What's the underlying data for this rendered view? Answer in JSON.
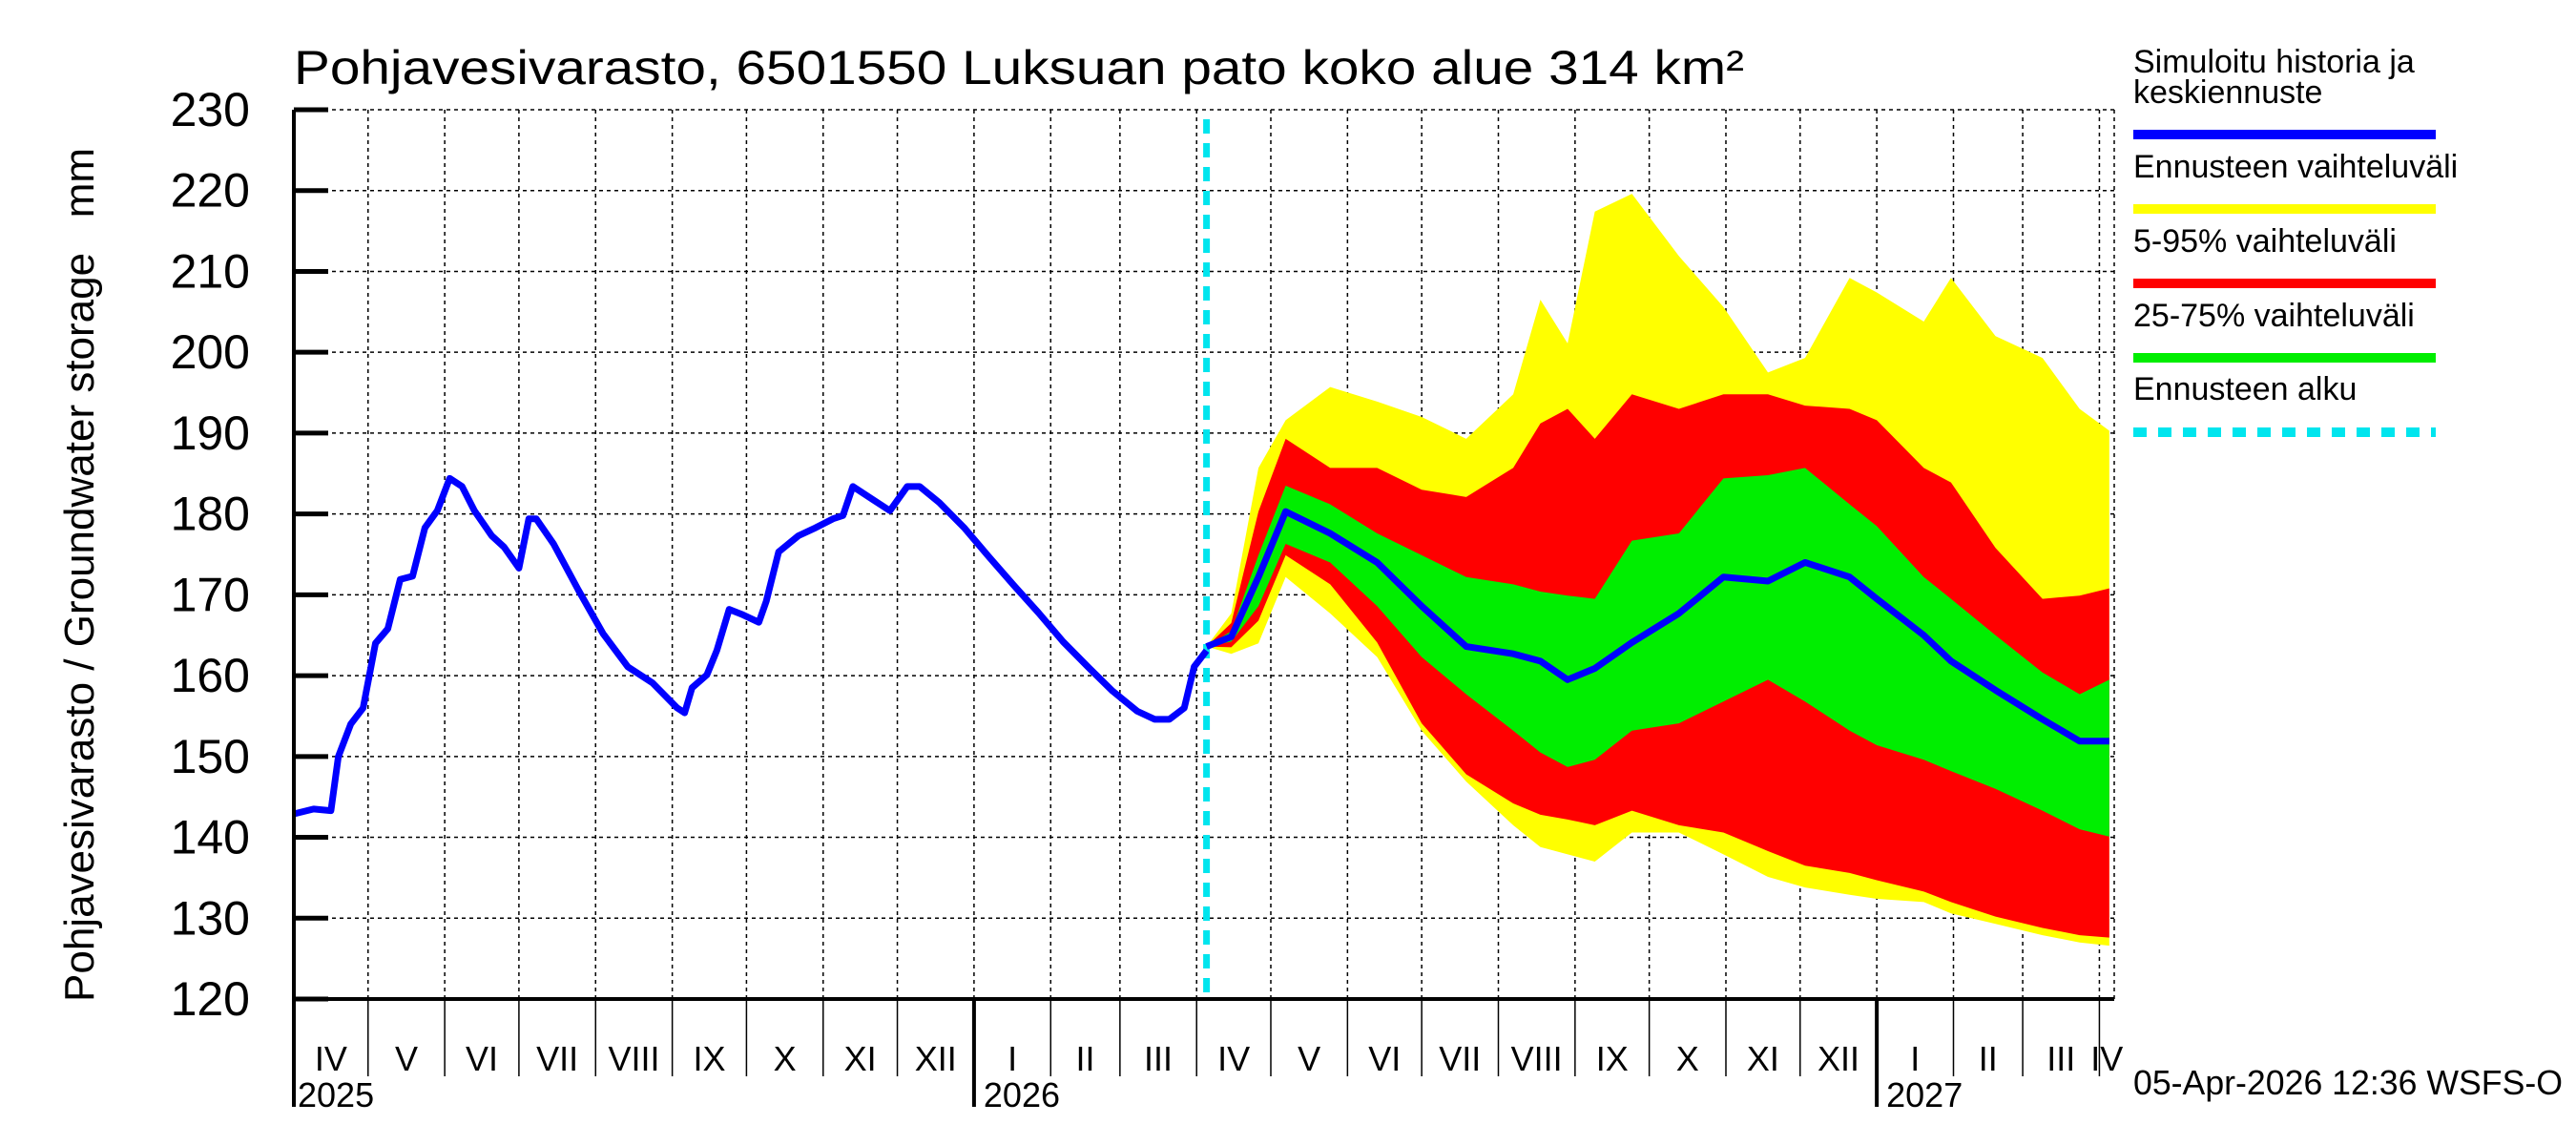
{
  "chart_data": {
    "type": "area",
    "title": "Pohjavesivarasto, 6501550 Luksuan pato koko alue 314 km²",
    "ylabel": "Pohjavesivarasto / Groundwater storage   mm",
    "xlabel": "",
    "ylim": [
      120,
      230
    ],
    "yticks": [
      120,
      130,
      140,
      150,
      160,
      170,
      180,
      190,
      200,
      210,
      220,
      230
    ],
    "x_unit": "days since 2025-04-01",
    "xlim": [
      0,
      736
    ],
    "grid": true,
    "legend_position": "right",
    "months": [
      {
        "label": "IV",
        "start": 0
      },
      {
        "label": "V",
        "start": 30
      },
      {
        "label": "VI",
        "start": 61
      },
      {
        "label": "VII",
        "start": 91
      },
      {
        "label": "VIII",
        "start": 122
      },
      {
        "label": "IX",
        "start": 153
      },
      {
        "label": "X",
        "start": 183
      },
      {
        "label": "XI",
        "start": 214
      },
      {
        "label": "XII",
        "start": 244
      },
      {
        "label": "I",
        "start": 275
      },
      {
        "label": "II",
        "start": 306
      },
      {
        "label": "III",
        "start": 334
      },
      {
        "label": "IV",
        "start": 365
      },
      {
        "label": "V",
        "start": 395
      },
      {
        "label": "VI",
        "start": 426
      },
      {
        "label": "VII",
        "start": 456
      },
      {
        "label": "VIII",
        "start": 487
      },
      {
        "label": "IX",
        "start": 518
      },
      {
        "label": "X",
        "start": 548
      },
      {
        "label": "XI",
        "start": 579
      },
      {
        "label": "XII",
        "start": 609
      },
      {
        "label": "I",
        "start": 640
      },
      {
        "label": "II",
        "start": 671
      },
      {
        "label": "III",
        "start": 699
      },
      {
        "label": "IV",
        "start": 730
      }
    ],
    "years": [
      {
        "label": "2025",
        "start": 0
      },
      {
        "label": "2026",
        "start": 275
      },
      {
        "label": "2027",
        "start": 640
      }
    ],
    "forecast_start": 369,
    "history": {
      "x": [
        0,
        8,
        15,
        18,
        23,
        28,
        33,
        38,
        43,
        48,
        53,
        58,
        63,
        68,
        73,
        80,
        85,
        91,
        95,
        98,
        105,
        115,
        125,
        135,
        145,
        155,
        158,
        161,
        167,
        171,
        176,
        181,
        188,
        191,
        196,
        204,
        211,
        218,
        222,
        226,
        234,
        241,
        248,
        253,
        261,
        271,
        281,
        291,
        301,
        311,
        321,
        331,
        341,
        348,
        354,
        360,
        364,
        369
      ],
      "y": [
        142.9,
        143.5,
        143.3,
        150,
        154,
        156,
        164,
        165.8,
        171.9,
        172.3,
        178.3,
        180.4,
        184.4,
        183.4,
        180.4,
        177.3,
        175.9,
        173.3,
        179.4,
        179.4,
        176.3,
        170.6,
        165.2,
        161.1,
        159.1,
        156,
        155.4,
        158.5,
        160.1,
        163.1,
        168.2,
        167.6,
        166.6,
        169.2,
        175.3,
        177.3,
        178.3,
        179.4,
        179.8,
        183.4,
        181.8,
        180.4,
        183.4,
        183.4,
        181.4,
        178.3,
        174.7,
        171.2,
        167.8,
        164.2,
        161.1,
        158.1,
        155.6,
        154.6,
        154.6,
        156,
        161.1,
        163.1
      ]
    },
    "forecast": {
      "x": [
        369,
        379,
        390,
        401,
        419,
        438,
        456,
        474,
        493,
        504,
        515,
        526,
        541,
        560,
        578,
        596,
        611,
        629,
        640,
        659,
        670,
        688,
        707,
        722,
        734
      ],
      "max": [
        163.6,
        167.7,
        185.7,
        191.6,
        195.7,
        193.9,
        192,
        189.3,
        194.8,
        206.5,
        201.1,
        217.4,
        219.6,
        211.9,
        205.6,
        197.5,
        199.3,
        209.2,
        207.4,
        203.8,
        209.2,
        202,
        199.3,
        193,
        190.3
      ],
      "p95": [
        163.6,
        166.5,
        180.3,
        189.3,
        185.7,
        185.7,
        183,
        182.1,
        185.7,
        191.2,
        193,
        189.3,
        194.8,
        193,
        194.8,
        194.8,
        193.4,
        193,
        191.6,
        185.7,
        183.9,
        175.8,
        169.5,
        169.9,
        170.8
      ],
      "p75": [
        163.6,
        165.5,
        174.9,
        183.5,
        181.2,
        177.6,
        174.9,
        172.2,
        171.3,
        170.4,
        169.9,
        169.5,
        176.7,
        177.6,
        184.4,
        184.8,
        185.7,
        181.2,
        178.5,
        172.2,
        169.5,
        165,
        160.4,
        157.7,
        159.5
      ],
      "mean": [
        163.6,
        164.8,
        172.2,
        180.3,
        177.6,
        174,
        168.6,
        163.6,
        162.7,
        161.8,
        159.5,
        160.9,
        164.1,
        167.7,
        172.2,
        171.7,
        174,
        172.2,
        169.5,
        165,
        161.8,
        158.2,
        154.6,
        151.9,
        151.9
      ],
      "p25": [
        163.6,
        164.2,
        168.6,
        176.3,
        174,
        168.6,
        162.3,
        157.7,
        153.2,
        150.5,
        148.7,
        149.6,
        153.2,
        154.1,
        156.8,
        159.5,
        156.8,
        153.2,
        151.4,
        149.6,
        148.2,
        146,
        143.3,
        141,
        140.1
      ],
      "p5": [
        163.6,
        163.5,
        166.8,
        174.9,
        171.3,
        164.1,
        154.1,
        147.8,
        144.2,
        142.8,
        142.2,
        141.5,
        143.3,
        141.5,
        140.6,
        138.3,
        136.5,
        135.6,
        134.7,
        133.3,
        132,
        130.2,
        128.8,
        127.9,
        127.6
      ],
      "min": [
        163.6,
        162.7,
        164,
        172.2,
        167.7,
        162.3,
        153.2,
        146.9,
        141.5,
        138.8,
        137.9,
        137,
        140.6,
        140.6,
        137.9,
        135.1,
        133.8,
        132.9,
        132.4,
        132,
        130.6,
        129.3,
        127.9,
        127,
        126.6
      ]
    },
    "legend": [
      {
        "label": "Simuloitu historia ja",
        "label2": "keskiennuste",
        "color": "#0000ff",
        "style": "solid"
      },
      {
        "label": "Ennusteen vaihteluväli",
        "color": "#ffff00",
        "style": "solid"
      },
      {
        "label": "5-95% vaihteluväli",
        "color": "#ff0000",
        "style": "solid"
      },
      {
        "label": "25-75% vaihteluväli",
        "color": "#00ee00",
        "style": "solid"
      },
      {
        "label": "Ennusteen alku",
        "color": "#00e5ee",
        "style": "dashed"
      }
    ]
  },
  "footer": {
    "timestamp": "05-Apr-2026 12:36 WSFS-O"
  }
}
